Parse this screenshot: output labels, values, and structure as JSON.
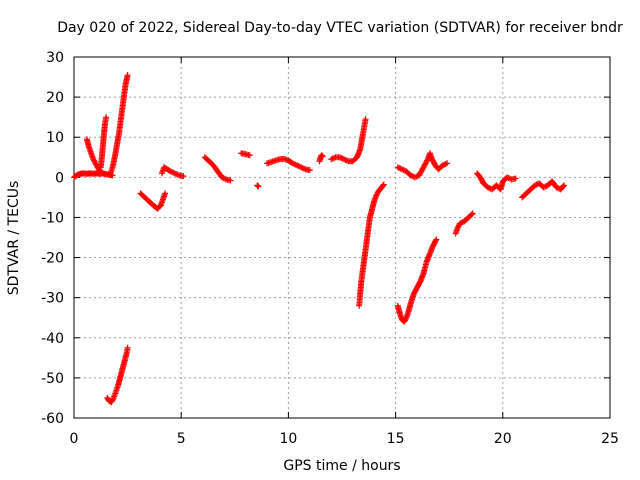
{
  "chart_data": {
    "type": "scatter",
    "title": "Day 020 of 2022, Sidereal Day-to-day VTEC variation (SDTVAR) for receiver bndr",
    "xlabel": "GPS time / hours",
    "ylabel": "SDTVAR / TECUs",
    "xlim": [
      0,
      25
    ],
    "ylim": [
      -60,
      30
    ],
    "xticks": [
      "0",
      "5",
      "10",
      "15",
      "20",
      "25"
    ],
    "yticks": [
      "-60",
      "-50",
      "-40",
      "-30",
      "-20",
      "-10",
      "0",
      "10",
      "20",
      "30"
    ],
    "grid": true,
    "marker": "+",
    "color": "#ff0000",
    "segments": [
      [
        [
          0.0,
          0.0
        ],
        [
          0.15,
          0.6
        ],
        [
          0.3,
          0.9
        ],
        [
          0.45,
          1.0
        ],
        [
          0.6,
          0.9
        ],
        [
          0.75,
          1.0
        ],
        [
          0.9,
          0.9
        ],
        [
          1.05,
          1.0
        ],
        [
          1.2,
          0.9
        ],
        [
          1.35,
          1.0
        ],
        [
          1.5,
          0.8
        ],
        [
          1.65,
          0.6
        ],
        [
          1.8,
          0.5
        ]
      ],
      [
        [
          0.6,
          9.5
        ],
        [
          0.7,
          7.5
        ],
        [
          0.8,
          6.0
        ],
        [
          0.9,
          4.5
        ],
        [
          1.0,
          3.5
        ],
        [
          1.1,
          2.5
        ],
        [
          1.2,
          1.8
        ]
      ],
      [
        [
          1.25,
          2.5
        ],
        [
          1.3,
          5.0
        ],
        [
          1.35,
          8.0
        ],
        [
          1.4,
          11.0
        ],
        [
          1.45,
          13.5
        ],
        [
          1.5,
          15.0
        ]
      ],
      [
        [
          1.7,
          1.0
        ],
        [
          1.8,
          2.5
        ],
        [
          1.9,
          5.0
        ],
        [
          2.0,
          8.0
        ],
        [
          2.1,
          11.0
        ],
        [
          2.2,
          15.0
        ],
        [
          2.3,
          19.0
        ],
        [
          2.4,
          23.0
        ],
        [
          2.5,
          25.5
        ]
      ],
      [
        [
          1.55,
          -55.0
        ],
        [
          1.65,
          -55.8
        ],
        [
          1.75,
          -56.0
        ],
        [
          1.85,
          -55.0
        ],
        [
          1.95,
          -53.5
        ],
        [
          2.05,
          -52.0
        ],
        [
          2.15,
          -50.0
        ],
        [
          2.25,
          -48.0
        ],
        [
          2.35,
          -46.0
        ],
        [
          2.45,
          -44.0
        ],
        [
          2.5,
          -42.5
        ]
      ],
      [
        [
          3.1,
          -4.0
        ],
        [
          3.3,
          -5.0
        ],
        [
          3.5,
          -6.0
        ],
        [
          3.7,
          -7.0
        ],
        [
          3.9,
          -7.8
        ],
        [
          4.05,
          -7.0
        ],
        [
          4.15,
          -5.5
        ],
        [
          4.25,
          -4.0
        ]
      ],
      [
        [
          4.1,
          1.0
        ],
        [
          4.2,
          2.5
        ],
        [
          4.35,
          2.0
        ],
        [
          4.5,
          1.5
        ],
        [
          4.7,
          1.0
        ],
        [
          4.9,
          0.5
        ],
        [
          5.1,
          0.3
        ]
      ],
      [
        [
          6.1,
          5.0
        ],
        [
          6.3,
          4.0
        ],
        [
          6.5,
          3.0
        ],
        [
          6.7,
          1.5
        ],
        [
          6.9,
          0.0
        ],
        [
          7.1,
          -0.5
        ],
        [
          7.3,
          -0.8
        ]
      ],
      [
        [
          7.8,
          6.0
        ],
        [
          8.0,
          5.8
        ],
        [
          8.2,
          5.5
        ]
      ],
      [
        [
          8.55,
          -2.0
        ],
        [
          8.6,
          -2.3
        ]
      ],
      [
        [
          9.0,
          3.5
        ],
        [
          9.2,
          3.8
        ],
        [
          9.4,
          4.2
        ],
        [
          9.6,
          4.5
        ],
        [
          9.8,
          4.6
        ],
        [
          10.0,
          4.2
        ],
        [
          10.2,
          3.5
        ],
        [
          10.4,
          3.0
        ],
        [
          10.6,
          2.5
        ],
        [
          10.8,
          2.0
        ],
        [
          11.0,
          1.8
        ]
      ],
      [
        [
          11.45,
          4.0
        ],
        [
          11.5,
          5.0
        ],
        [
          11.55,
          5.5
        ],
        [
          11.6,
          5.2
        ]
      ],
      [
        [
          12.0,
          4.5
        ],
        [
          12.2,
          5.0
        ],
        [
          12.4,
          5.0
        ],
        [
          12.6,
          4.5
        ],
        [
          12.8,
          4.0
        ],
        [
          13.0,
          4.0
        ],
        [
          13.2,
          5.0
        ],
        [
          13.35,
          7.0
        ],
        [
          13.45,
          10.0
        ],
        [
          13.55,
          13.0
        ],
        [
          13.6,
          14.5
        ]
      ],
      [
        [
          13.3,
          -32.0
        ],
        [
          13.35,
          -29.0
        ],
        [
          13.4,
          -26.0
        ],
        [
          13.5,
          -22.0
        ],
        [
          13.6,
          -18.0
        ],
        [
          13.7,
          -14.0
        ],
        [
          13.8,
          -10.0
        ],
        [
          13.9,
          -8.0
        ],
        [
          14.0,
          -6.0
        ],
        [
          14.1,
          -4.5
        ],
        [
          14.2,
          -3.5
        ],
        [
          14.35,
          -2.5
        ],
        [
          14.45,
          -1.8
        ]
      ],
      [
        [
          15.1,
          2.5
        ],
        [
          15.3,
          2.0
        ],
        [
          15.5,
          1.5
        ],
        [
          15.7,
          0.5
        ],
        [
          15.9,
          0.0
        ],
        [
          16.1,
          0.5
        ],
        [
          16.3,
          2.5
        ],
        [
          16.5,
          4.5
        ],
        [
          16.6,
          6.0
        ],
        [
          16.7,
          4.5
        ],
        [
          16.85,
          3.0
        ],
        [
          17.0,
          2.0
        ],
        [
          17.2,
          3.0
        ],
        [
          17.4,
          3.5
        ]
      ],
      [
        [
          15.1,
          -32.0
        ],
        [
          15.2,
          -34.0
        ],
        [
          15.3,
          -35.5
        ],
        [
          15.4,
          -36.0
        ],
        [
          15.5,
          -35.0
        ],
        [
          15.6,
          -33.5
        ],
        [
          15.7,
          -31.5
        ],
        [
          15.85,
          -29.0
        ],
        [
          16.0,
          -27.5
        ],
        [
          16.15,
          -26.0
        ],
        [
          16.3,
          -24.0
        ],
        [
          16.45,
          -21.0
        ],
        [
          16.6,
          -19.0
        ],
        [
          16.75,
          -17.0
        ],
        [
          16.9,
          -15.5
        ]
      ],
      [
        [
          17.8,
          -14.0
        ],
        [
          17.9,
          -12.5
        ],
        [
          18.0,
          -11.5
        ],
        [
          18.2,
          -11.0
        ],
        [
          18.4,
          -10.0
        ],
        [
          18.6,
          -9.0
        ]
      ],
      [
        [
          18.8,
          1.0
        ],
        [
          18.95,
          0.0
        ],
        [
          19.1,
          -1.5
        ],
        [
          19.3,
          -2.5
        ],
        [
          19.5,
          -3.0
        ],
        [
          19.7,
          -2.0
        ],
        [
          19.9,
          -3.0
        ],
        [
          20.0,
          -1.0
        ],
        [
          20.2,
          0.0
        ],
        [
          20.4,
          -0.5
        ],
        [
          20.6,
          -0.3
        ]
      ],
      [
        [
          20.9,
          -5.0
        ],
        [
          21.1,
          -4.0
        ],
        [
          21.3,
          -3.0
        ],
        [
          21.5,
          -2.0
        ],
        [
          21.7,
          -1.5
        ],
        [
          21.9,
          -2.5
        ],
        [
          22.1,
          -2.0
        ],
        [
          22.3,
          -1.0
        ],
        [
          22.5,
          -2.5
        ],
        [
          22.7,
          -3.0
        ],
        [
          22.85,
          -2.0
        ]
      ]
    ]
  }
}
